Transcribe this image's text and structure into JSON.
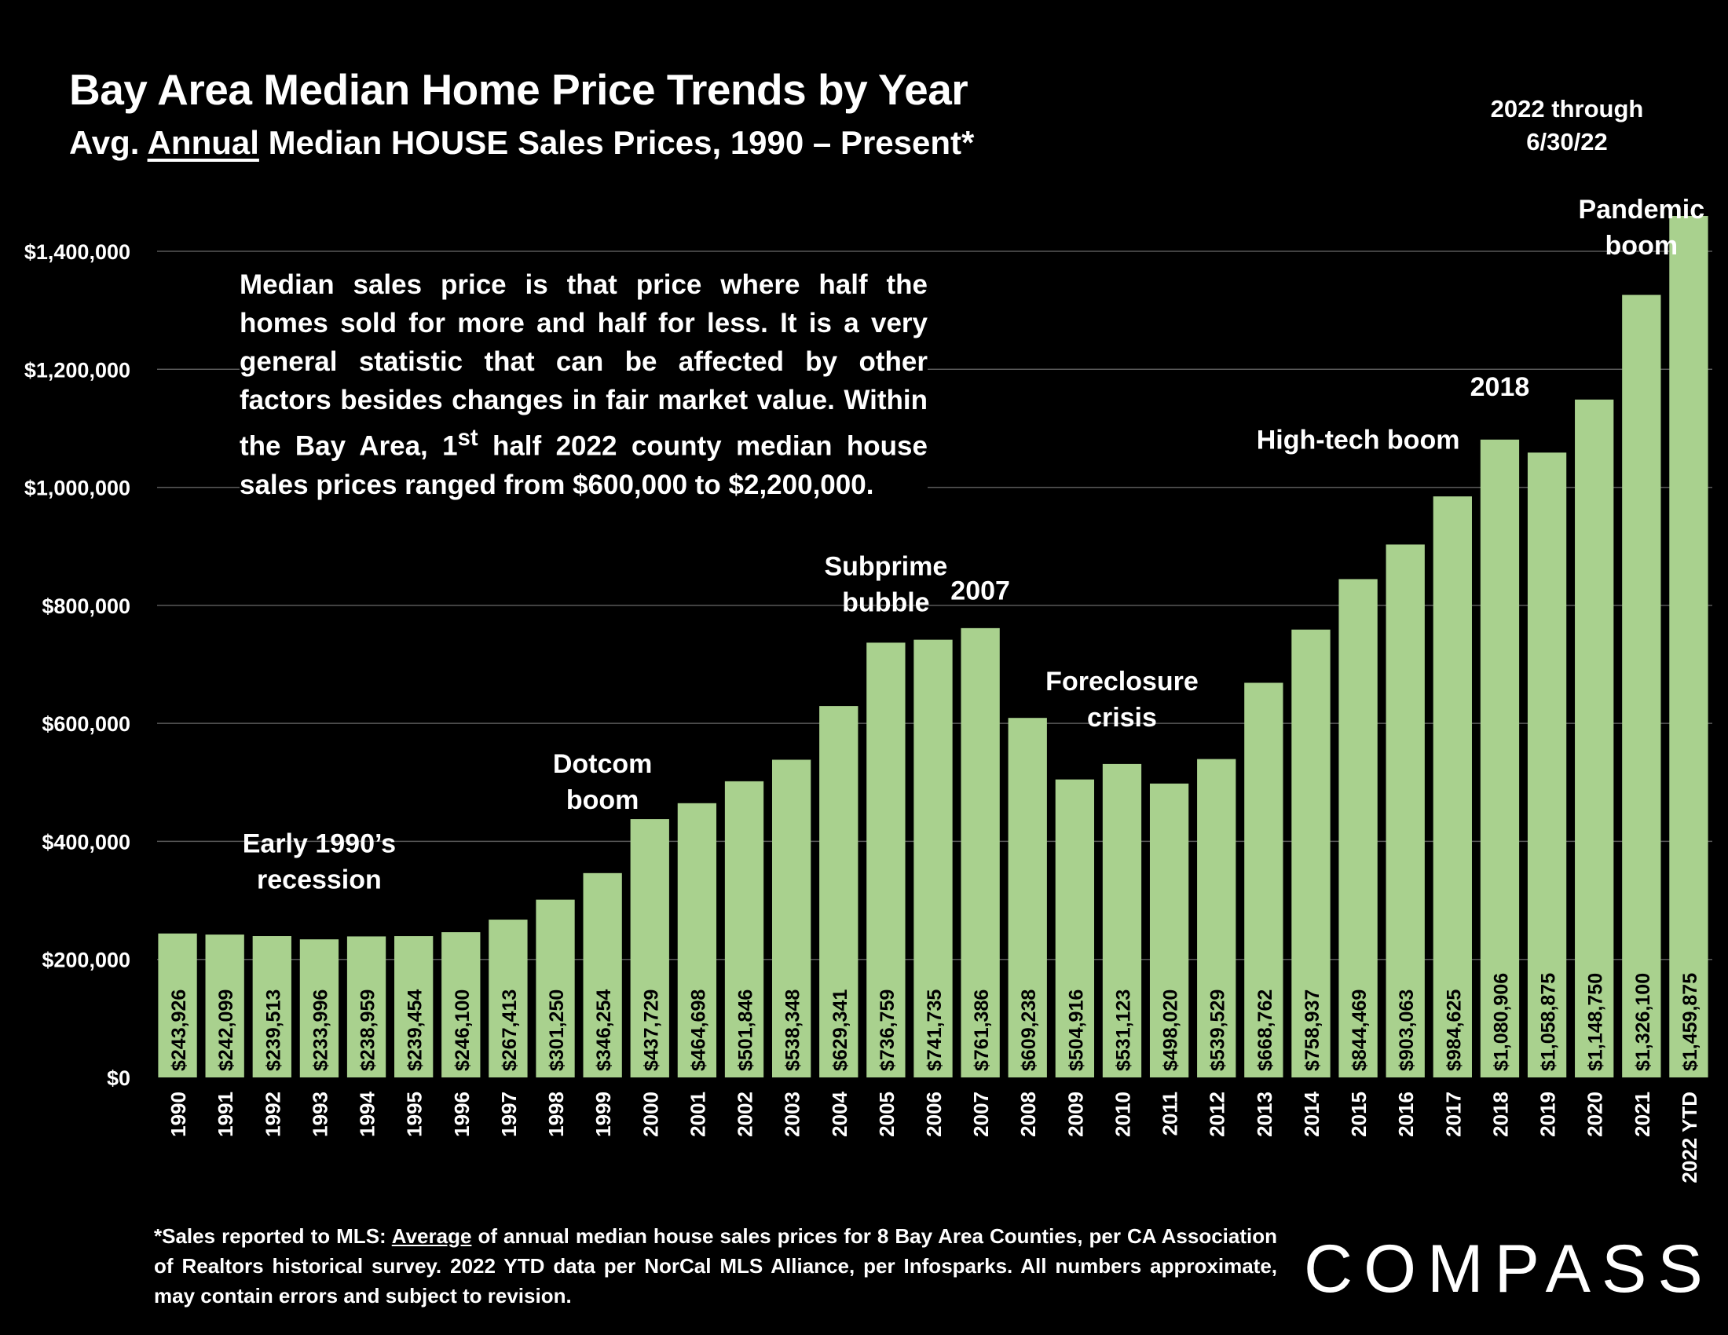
{
  "header": {
    "title": "Bay Area Median Home Price Trends by Year",
    "subtitle_prefix": "Avg. ",
    "subtitle_underlined": "Annual",
    "subtitle_suffix": " Median HOUSE Sales Prices, 1990 – Present*",
    "ytd_note_line1": "2022 through",
    "ytd_note_line2": "6/30/22"
  },
  "callout": {
    "text_part1": "Median sales price is that price where half the homes sold for more and half for less. It is a very general statistic that can be affected by other factors besides changes in fair market value. Within the Bay Area, 1",
    "text_sup": "st",
    "text_part2": " half 2022 county median house sales prices ranged from $600,000 to $2,200,000."
  },
  "footnote": {
    "prefix": "*Sales reported to MLS: ",
    "underlined": "Average",
    "suffix": " of annual median house sales prices for 8 Bay Area Counties, per CA Association of Realtors historical survey. 2022 YTD data per NorCal MLS Alliance, per Infosparks. All numbers approximate, may contain errors and subject to revision."
  },
  "logo": {
    "text": "COMPASS"
  },
  "colors": {
    "background": "#000000",
    "bar": "#a9d18e",
    "text": "#ffffff",
    "gridline": "#595959"
  },
  "chart_data": {
    "type": "bar",
    "categories": [
      "1990",
      "1991",
      "1992",
      "1993",
      "1994",
      "1995",
      "1996",
      "1997",
      "1998",
      "1999",
      "2000",
      "2001",
      "2002",
      "2003",
      "2004",
      "2005",
      "2006",
      "2007",
      "2008",
      "2009",
      "2010",
      "2011",
      "2012",
      "2013",
      "2014",
      "2015",
      "2016",
      "2017",
      "2018",
      "2019",
      "2020",
      "2021",
      "2022 YTD"
    ],
    "values": [
      243926,
      242099,
      239513,
      233996,
      238959,
      239454,
      246100,
      267413,
      301250,
      346254,
      437729,
      464698,
      501846,
      538348,
      629341,
      736759,
      741735,
      761386,
      609238,
      504916,
      531123,
      498020,
      539529,
      668762,
      758937,
      844469,
      903063,
      984625,
      1080906,
      1058875,
      1148750,
      1326100,
      1459875
    ],
    "value_labels": [
      "$243,926",
      "$242,099",
      "$239,513",
      "$233,996",
      "$238,959",
      "$239,454",
      "$246,100",
      "$267,413",
      "$301,250",
      "$346,254",
      "$437,729",
      "$464,698",
      "$501,846",
      "$538,348",
      "$629,341",
      "$736,759",
      "$741,735",
      "$761,386",
      "$609,238",
      "$504,916",
      "$531,123",
      "$498,020",
      "$539,529",
      "$668,762",
      "$758,937",
      "$844,469",
      "$903,063",
      "$984,625",
      "$1,080,906",
      "$1,058,875",
      "$1,148,750",
      "$1,326,100",
      "$1,459,875"
    ],
    "ylim": [
      0,
      1400000
    ],
    "y_ticks": [
      0,
      200000,
      400000,
      600000,
      800000,
      1000000,
      1200000,
      1400000
    ],
    "y_tick_labels": [
      "$0",
      "$200,000",
      "$400,000",
      "$600,000",
      "$800,000",
      "$1,000,000",
      "$1,200,000",
      "$1,400,000"
    ],
    "grid": true,
    "annotations": [
      {
        "category": "1993",
        "lines": [
          "Early 1990’s",
          "recession"
        ],
        "value": 320000
      },
      {
        "category": "1999",
        "lines": [
          "Dotcom",
          "boom"
        ],
        "value": 455000
      },
      {
        "category": "2005",
        "lines": [
          "Subprime",
          "bubble"
        ],
        "value": 790000
      },
      {
        "category": "2007",
        "lines": [
          "2007"
        ],
        "value": 810000
      },
      {
        "category": "2010",
        "lines": [
          "Foreclosure",
          "crisis"
        ],
        "value": 595000
      },
      {
        "category": "2015",
        "lines": [
          "High-tech boom"
        ],
        "value": 1065000
      },
      {
        "category": "2018",
        "lines": [
          "2018"
        ],
        "value": 1155000
      },
      {
        "category": "2021",
        "lines": [
          "Pandemic",
          "boom"
        ],
        "value": 1395000
      }
    ]
  }
}
